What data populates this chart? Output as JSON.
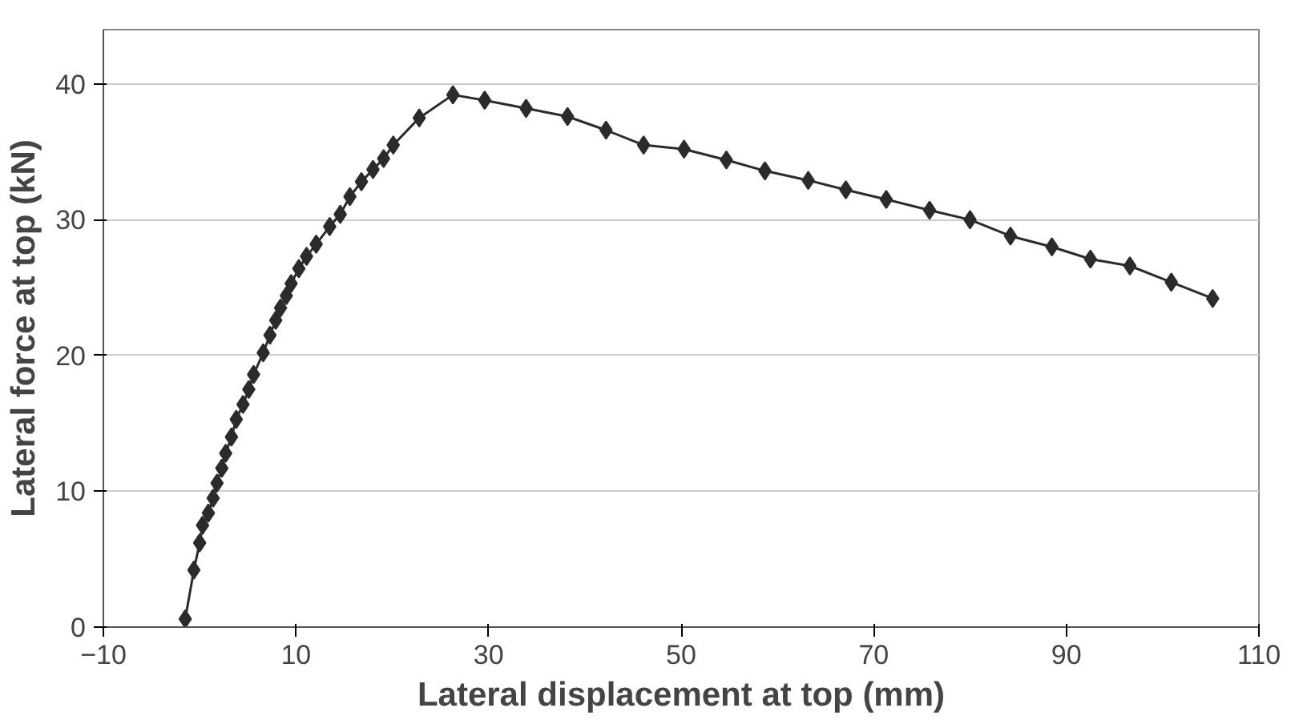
{
  "chart_data": {
    "type": "line",
    "xlabel": "Lateral displacement at top (mm)",
    "ylabel": "Lateral force at top (kN)",
    "xlim": [
      -10,
      110
    ],
    "xticks": [
      -10,
      10,
      30,
      50,
      70,
      90,
      110
    ],
    "ylim": [
      0,
      44
    ],
    "yticks": [
      0,
      10,
      20,
      30,
      40
    ],
    "grid": "y",
    "marker": "diamond",
    "line_style": "solid",
    "series": [
      {
        "color": "#2b2b2b",
        "x": [
          -1.5,
          -0.6,
          0.0,
          0.3,
          0.9,
          1.4,
          1.8,
          2.3,
          2.7,
          3.3,
          3.8,
          4.5,
          5.1,
          5.6,
          6.6,
          7.3,
          7.9,
          8.4,
          9.0,
          9.5,
          10.3,
          11.1,
          12.1,
          13.5,
          14.6,
          15.6,
          16.8,
          18.0,
          19.1,
          20.1,
          22.8,
          26.3,
          29.6,
          33.9,
          38.2,
          42.2,
          46.1,
          50.3,
          54.7,
          58.7,
          63.2,
          67.1,
          71.3,
          75.8,
          80.0,
          84.2,
          88.5,
          92.5,
          96.6,
          100.9,
          105.2
        ],
        "values": [
          0.6,
          4.2,
          6.2,
          7.5,
          8.4,
          9.5,
          10.6,
          11.7,
          12.8,
          14.0,
          15.3,
          16.4,
          17.5,
          18.6,
          20.2,
          21.5,
          22.6,
          23.5,
          24.4,
          25.3,
          26.4,
          27.3,
          28.2,
          29.5,
          30.4,
          31.7,
          32.8,
          33.7,
          34.5,
          35.5,
          37.5,
          39.2,
          38.8,
          38.2,
          37.6,
          36.6,
          35.5,
          35.2,
          34.4,
          33.6,
          32.9,
          32.2,
          31.5,
          30.7,
          30.0,
          28.8,
          28.0,
          27.1,
          26.6,
          25.4,
          24.2
        ]
      }
    ]
  }
}
